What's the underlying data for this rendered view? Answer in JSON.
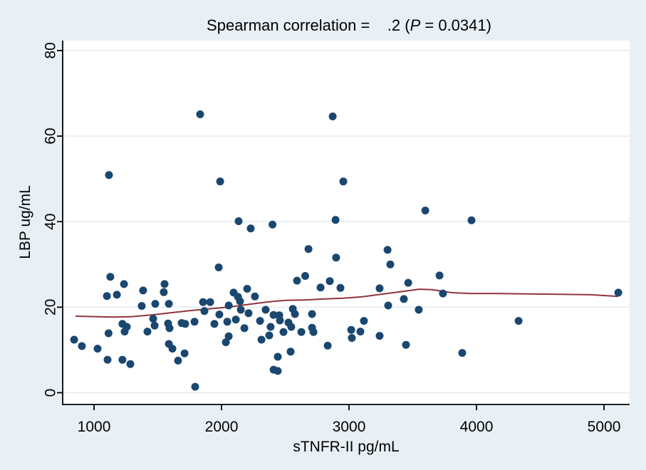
{
  "figure": {
    "background_color": "#e9f0f5",
    "plot_background_color": "#ffffff",
    "gridline_color": "#e2ecf2",
    "axis_color": "#000000"
  },
  "chart_data": {
    "type": "scatter",
    "title_full": "Spearman correlation =   .2 (P = 0.0341)",
    "title_prefix": "Spearman correlation =    .2 (",
    "title_p": "P",
    "title_suffix": " = 0.0341)",
    "xlabel": "sTNFR-II pg/mL",
    "ylabel": "LBP ug/mL",
    "x_ticks": [
      1000,
      2000,
      3000,
      4000,
      5000
    ],
    "y_ticks": [
      0,
      20,
      40,
      60,
      80
    ],
    "x_range": [
      754,
      5201
    ],
    "y_range": [
      -2.75,
      82.33
    ],
    "grid": "horizontal",
    "legend_position": "none",
    "marker_color": "#1a476f",
    "marker_radius": 5.5,
    "line_color": "#90353b",
    "line_width": 2,
    "series_names": [
      "LBP vs sTNFR-II",
      "lowess smoother"
    ],
    "points": [
      [
        1832,
        65.1
      ],
      [
        2872,
        64.6
      ],
      [
        1117,
        50.9
      ],
      [
        1989,
        49.4
      ],
      [
        2955,
        49.4
      ],
      [
        3598,
        42.6
      ],
      [
        3961,
        40.3
      ],
      [
        2894,
        40.4
      ],
      [
        2134,
        40.1
      ],
      [
        2400,
        39.3
      ],
      [
        2229,
        38.4
      ],
      [
        2682,
        33.6
      ],
      [
        3302,
        33.4
      ],
      [
        2899,
        31.6
      ],
      [
        3324,
        30.0
      ],
      [
        1978,
        29.3
      ],
      [
        3710,
        27.4
      ],
      [
        1128,
        27.1
      ],
      [
        2656,
        27.3
      ],
      [
        2592,
        26.2
      ],
      [
        2849,
        26.1
      ],
      [
        3464,
        25.7
      ],
      [
        1235,
        25.4
      ],
      [
        1553,
        25.4
      ],
      [
        2777,
        24.6
      ],
      [
        2933,
        24.5
      ],
      [
        3240,
        24.4
      ],
      [
        2201,
        24.3
      ],
      [
        1385,
        23.9
      ],
      [
        1547,
        23.5
      ],
      [
        2095,
        23.4
      ],
      [
        5112,
        23.4
      ],
      [
        3737,
        23.2
      ],
      [
        1179,
        22.9
      ],
      [
        1101,
        22.6
      ],
      [
        2262,
        22.5
      ],
      [
        2129,
        22.4
      ],
      [
        3430,
        21.9
      ],
      [
        2145,
        21.4
      ],
      [
        1855,
        21.2
      ],
      [
        1911,
        21.2
      ],
      [
        1480,
        20.8
      ],
      [
        1587,
        20.8
      ],
      [
        2056,
        20.4
      ],
      [
        3307,
        20.4
      ],
      [
        1374,
        20.3
      ],
      [
        2559,
        19.6
      ],
      [
        3547,
        19.4
      ],
      [
        2346,
        19.4
      ],
      [
        2151,
        19.4
      ],
      [
        1866,
        19.1
      ],
      [
        2576,
        18.4
      ],
      [
        2212,
        18.6
      ],
      [
        2710,
        18.4
      ],
      [
        1983,
        18.3
      ],
      [
        2453,
        18.1
      ],
      [
        2408,
        18.2
      ],
      [
        1464,
        17.3
      ],
      [
        2112,
        17.1
      ],
      [
        4330,
        16.8
      ],
      [
        3117,
        16.8
      ],
      [
        2302,
        16.8
      ],
      [
        2458,
        16.9
      ],
      [
        1788,
        16.6
      ],
      [
        2045,
        16.6
      ],
      [
        2525,
        16.4
      ],
      [
        1687,
        16.3
      ],
      [
        1223,
        16.1
      ],
      [
        1715,
        16.1
      ],
      [
        1944,
        16.1
      ],
      [
        1581,
        16.2
      ],
      [
        1475,
        15.7
      ],
      [
        1257,
        15.4
      ],
      [
        2385,
        15.4
      ],
      [
        2547,
        15.4
      ],
      [
        2710,
        15.2
      ],
      [
        1592,
        15.1
      ],
      [
        2179,
        15.1
      ],
      [
        3017,
        14.7
      ],
      [
        1240,
        14.3
      ],
      [
        1419,
        14.3
      ],
      [
        3089,
        14.3
      ],
      [
        2486,
        14.2
      ],
      [
        2626,
        14.2
      ],
      [
        2721,
        14.2
      ],
      [
        1114,
        13.9
      ],
      [
        2374,
        13.4
      ],
      [
        3240,
        13.3
      ],
      [
        2056,
        13.2
      ],
      [
        3022,
        12.8
      ],
      [
        844,
        12.4
      ],
      [
        2313,
        12.4
      ],
      [
        2034,
        11.8
      ],
      [
        1587,
        11.4
      ],
      [
        3447,
        11.2
      ],
      [
        2833,
        11.0
      ],
      [
        905,
        10.9
      ],
      [
        1615,
        10.3
      ],
      [
        1028,
        10.3
      ],
      [
        2542,
        9.6
      ],
      [
        3888,
        9.3
      ],
      [
        1710,
        9.2
      ],
      [
        2441,
        8.4
      ],
      [
        1106,
        7.7
      ],
      [
        1223,
        7.7
      ],
      [
        1659,
        7.5
      ],
      [
        1285,
        6.7
      ],
      [
        2408,
        5.4
      ],
      [
        2441,
        5.1
      ],
      [
        1793,
        1.4
      ]
    ],
    "lowess_line": [
      [
        855,
        17.9
      ],
      [
        1000,
        17.8
      ],
      [
        1150,
        17.7
      ],
      [
        1300,
        17.8
      ],
      [
        1450,
        18.2
      ],
      [
        1600,
        18.7
      ],
      [
        1750,
        19.2
      ],
      [
        1900,
        19.6
      ],
      [
        2050,
        20.0
      ],
      [
        2200,
        20.6
      ],
      [
        2350,
        21.2
      ],
      [
        2500,
        21.6
      ],
      [
        2650,
        21.7
      ],
      [
        2800,
        21.9
      ],
      [
        2950,
        22.1
      ],
      [
        3100,
        22.4
      ],
      [
        3250,
        23.0
      ],
      [
        3400,
        23.6
      ],
      [
        3550,
        24.2
      ],
      [
        3650,
        24.1
      ],
      [
        3800,
        23.4
      ],
      [
        3950,
        23.2
      ],
      [
        4150,
        23.2
      ],
      [
        4400,
        23.1
      ],
      [
        4650,
        23.0
      ],
      [
        4900,
        22.9
      ],
      [
        5112,
        22.5
      ]
    ]
  }
}
